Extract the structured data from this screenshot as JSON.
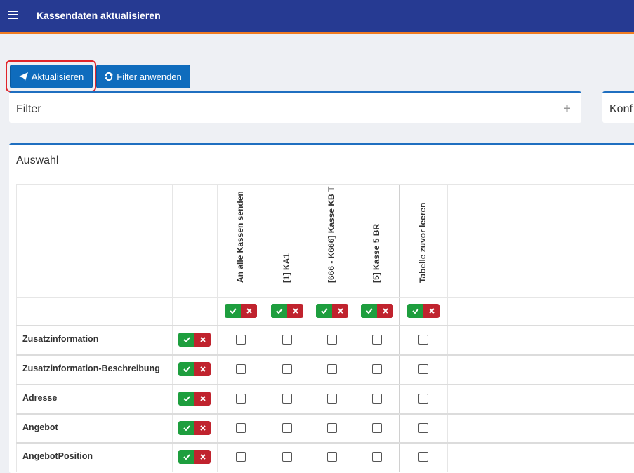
{
  "header": {
    "title": "Kassendaten aktualisieren"
  },
  "toolbar": {
    "buttons": [
      "Aktualisieren",
      "Filter anwenden"
    ]
  },
  "panels": {
    "filter": "Filter",
    "config": "Konf",
    "selection": "Auswahl"
  },
  "table": {
    "columns": [
      "An alle Kassen senden",
      "[1] KA1",
      "[666 - K666] Kasse KB T",
      "[5] Kasse 5 BR",
      "Tabelle zuvor leeren"
    ],
    "rows": [
      "Zusatzinformation",
      "Zusatzinformation-Beschreibung",
      "Adresse",
      "Angebot",
      "AngebotPosition"
    ]
  }
}
